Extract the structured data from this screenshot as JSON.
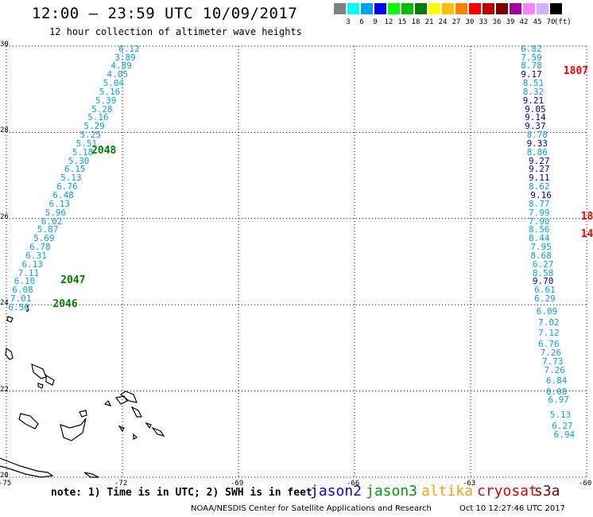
{
  "header": {
    "title": "12:00 – 23:59 UTC 10/09/2017",
    "subtitle": "12 hour collection of altimeter wave heights"
  },
  "legend": {
    "unit": "(ft)",
    "bins": [
      {
        "label": "3",
        "color": "#808080"
      },
      {
        "label": "6",
        "color": "#00ffff"
      },
      {
        "label": "9",
        "color": "#00a0ff"
      },
      {
        "label": "12",
        "color": "#0000ff"
      },
      {
        "label": "15",
        "color": "#00ff00"
      },
      {
        "label": "18",
        "color": "#00c000"
      },
      {
        "label": "21",
        "color": "#008000"
      },
      {
        "label": "24",
        "color": "#ffff00"
      },
      {
        "label": "27",
        "color": "#ffc000"
      },
      {
        "label": "30",
        "color": "#ff8000"
      },
      {
        "label": "33",
        "color": "#ff0000"
      },
      {
        "label": "36",
        "color": "#c00000"
      },
      {
        "label": "39",
        "color": "#800000"
      },
      {
        "label": "42",
        "color": "#a000a0"
      },
      {
        "label": "45",
        "color": "#ff80ff"
      },
      {
        "label": "70",
        "color": "#d0b0ff"
      },
      {
        "label": "",
        "color": "#000000"
      }
    ]
  },
  "axes": {
    "lon_ticks": [
      "-75",
      "-72",
      "-69",
      "-66",
      "-63",
      "-60"
    ],
    "lat_ticks": [
      "30",
      "28",
      "26",
      "24",
      "22",
      "20"
    ],
    "lon_range": [
      -75,
      -60
    ],
    "lat_range": [
      20,
      30
    ]
  },
  "tracks": [
    {
      "id": "west-track",
      "points": [
        {
          "v": "6.12",
          "lon": -72.1,
          "lat": 29.95,
          "c": "#00a0ff"
        },
        {
          "v": "3.89",
          "lon": -72.2,
          "lat": 29.75,
          "c": "#00a0ff"
        },
        {
          "v": "4.89",
          "lon": -72.3,
          "lat": 29.55,
          "c": "#00a0ff"
        },
        {
          "v": "4.05",
          "lon": -72.4,
          "lat": 29.35,
          "c": "#00a0ff"
        },
        {
          "v": "5.04",
          "lon": -72.5,
          "lat": 29.15,
          "c": "#00a0ff"
        },
        {
          "v": "5.16",
          "lon": -72.6,
          "lat": 28.95,
          "c": "#00a0ff"
        },
        {
          "v": "5.39",
          "lon": -72.7,
          "lat": 28.75,
          "c": "#00a0ff"
        },
        {
          "v": "5.28",
          "lon": -72.8,
          "lat": 28.55,
          "c": "#00a0ff"
        },
        {
          "v": "5.16",
          "lon": -72.9,
          "lat": 28.35,
          "c": "#00a0ff"
        },
        {
          "v": "5.29",
          "lon": -73.0,
          "lat": 28.15,
          "c": "#00a0ff"
        },
        {
          "v": "5.25",
          "lon": -73.1,
          "lat": 27.95,
          "c": "#00a0ff"
        },
        {
          "v": "5.51",
          "lon": -73.2,
          "lat": 27.75,
          "c": "#00a0ff"
        },
        {
          "v": "5.18",
          "lon": -73.3,
          "lat": 27.55,
          "c": "#00a0ff"
        },
        {
          "v": "5.30",
          "lon": -73.4,
          "lat": 27.35,
          "c": "#00a0ff"
        },
        {
          "v": "6.15",
          "lon": -73.5,
          "lat": 27.15,
          "c": "#00a0ff"
        },
        {
          "v": "5.13",
          "lon": -73.6,
          "lat": 26.95,
          "c": "#00a0ff"
        },
        {
          "v": "6.76",
          "lon": -73.7,
          "lat": 26.75,
          "c": "#00a0ff"
        },
        {
          "v": "6.48",
          "lon": -73.8,
          "lat": 26.55,
          "c": "#00a0ff"
        },
        {
          "v": "6.13",
          "lon": -73.9,
          "lat": 26.35,
          "c": "#00a0ff"
        },
        {
          "v": "5.96",
          "lon": -74.0,
          "lat": 26.15,
          "c": "#00a0ff"
        },
        {
          "v": "6.02",
          "lon": -74.1,
          "lat": 25.95,
          "c": "#00a0ff"
        },
        {
          "v": "5.87",
          "lon": -74.2,
          "lat": 25.75,
          "c": "#00a0ff"
        },
        {
          "v": "5.69",
          "lon": -74.3,
          "lat": 25.55,
          "c": "#00a0ff"
        },
        {
          "v": "6.78",
          "lon": -74.4,
          "lat": 25.35,
          "c": "#00a0ff"
        },
        {
          "v": "6.31",
          "lon": -74.5,
          "lat": 25.15,
          "c": "#00a0ff"
        },
        {
          "v": "6.13",
          "lon": -74.6,
          "lat": 24.95,
          "c": "#00a0ff"
        },
        {
          "v": "7.11",
          "lon": -74.7,
          "lat": 24.75,
          "c": "#00a0ff"
        },
        {
          "v": "6.10",
          "lon": -74.8,
          "lat": 24.55,
          "c": "#00a0ff"
        },
        {
          "v": "6.08",
          "lon": -74.85,
          "lat": 24.35,
          "c": "#00a0ff"
        },
        {
          "v": "7.01",
          "lon": -74.9,
          "lat": 24.15,
          "c": "#00a0ff"
        },
        {
          "v": "6.50",
          "lon": -74.95,
          "lat": 23.95,
          "c": "#00a0ff"
        }
      ]
    },
    {
      "id": "east-track",
      "points": [
        {
          "v": "6.82",
          "lon": -61.7,
          "lat": 29.95,
          "c": "#00a0ff"
        },
        {
          "v": "7.59",
          "lon": -61.7,
          "lat": 29.75,
          "c": "#00a0ff"
        },
        {
          "v": "8.78",
          "lon": -61.7,
          "lat": 29.55,
          "c": "#00a0ff"
        },
        {
          "v": "9.17",
          "lon": -61.7,
          "lat": 29.35,
          "c": "#0000c0"
        },
        {
          "v": "8.51",
          "lon": -61.65,
          "lat": 29.15,
          "c": "#00a0ff"
        },
        {
          "v": "8.32",
          "lon": -61.65,
          "lat": 28.95,
          "c": "#00a0ff"
        },
        {
          "v": "9.21",
          "lon": -61.65,
          "lat": 28.75,
          "c": "#0000c0"
        },
        {
          "v": "9.05",
          "lon": -61.6,
          "lat": 28.55,
          "c": "#0000c0"
        },
        {
          "v": "9.14",
          "lon": -61.6,
          "lat": 28.35,
          "c": "#0000c0"
        },
        {
          "v": "9.37",
          "lon": -61.6,
          "lat": 28.15,
          "c": "#0000c0"
        },
        {
          "v": "8.78",
          "lon": -61.55,
          "lat": 27.95,
          "c": "#00a0ff"
        },
        {
          "v": "9.33",
          "lon": -61.55,
          "lat": 27.75,
          "c": "#0000c0"
        },
        {
          "v": "8.86",
          "lon": -61.55,
          "lat": 27.55,
          "c": "#00a0ff"
        },
        {
          "v": "9.27",
          "lon": -61.5,
          "lat": 27.35,
          "c": "#0000c0"
        },
        {
          "v": "9.27",
          "lon": -61.5,
          "lat": 27.15,
          "c": "#0000c0"
        },
        {
          "v": "9.11",
          "lon": -61.5,
          "lat": 26.95,
          "c": "#0000c0"
        },
        {
          "v": "8.62",
          "lon": -61.5,
          "lat": 26.75,
          "c": "#00a0ff"
        },
        {
          "v": "9.16",
          "lon": -61.45,
          "lat": 26.55,
          "c": "#0000c0"
        },
        {
          "v": "8.77",
          "lon": -61.5,
          "lat": 26.35,
          "c": "#00a0ff"
        },
        {
          "v": "7.99",
          "lon": -61.5,
          "lat": 26.15,
          "c": "#00a0ff"
        },
        {
          "v": "7.90",
          "lon": -61.5,
          "lat": 25.95,
          "c": "#00a0ff"
        },
        {
          "v": "8.56",
          "lon": -61.5,
          "lat": 25.75,
          "c": "#00a0ff"
        },
        {
          "v": "8.44",
          "lon": -61.5,
          "lat": 25.55,
          "c": "#00a0ff"
        },
        {
          "v": "7.95",
          "lon": -61.45,
          "lat": 25.35,
          "c": "#00a0ff"
        },
        {
          "v": "8.68",
          "lon": -61.45,
          "lat": 25.15,
          "c": "#00a0ff"
        },
        {
          "v": "6.27",
          "lon": -61.4,
          "lat": 24.95,
          "c": "#00a0ff"
        },
        {
          "v": "8.58",
          "lon": -61.4,
          "lat": 24.75,
          "c": "#00a0ff"
        },
        {
          "v": "9.70",
          "lon": -61.4,
          "lat": 24.55,
          "c": "#0000c0"
        },
        {
          "v": "6.61",
          "lon": -61.35,
          "lat": 24.35,
          "c": "#00a0ff"
        },
        {
          "v": "6.29",
          "lon": -61.35,
          "lat": 24.15,
          "c": "#00a0ff"
        },
        {
          "v": "6.09",
          "lon": -61.3,
          "lat": 23.85,
          "c": "#00a0ff"
        },
        {
          "v": "7.02",
          "lon": -61.25,
          "lat": 23.6,
          "c": "#00a0ff"
        },
        {
          "v": "7.12",
          "lon": -61.25,
          "lat": 23.35,
          "c": "#00a0ff"
        },
        {
          "v": "6.76",
          "lon": -61.25,
          "lat": 23.1,
          "c": "#00a0ff"
        },
        {
          "v": "7.26",
          "lon": -61.2,
          "lat": 22.9,
          "c": "#00a0ff"
        },
        {
          "v": "7.73",
          "lon": -61.15,
          "lat": 22.7,
          "c": "#00a0ff"
        },
        {
          "v": "7.26",
          "lon": -61.1,
          "lat": 22.5,
          "c": "#00a0ff"
        },
        {
          "v": "6.84",
          "lon": -61.05,
          "lat": 22.25,
          "c": "#00a0ff"
        },
        {
          "v": "8.08",
          "lon": -61.05,
          "lat": 22.0,
          "c": "#00a0ff"
        },
        {
          "v": "6.97",
          "lon": -61.0,
          "lat": 21.8,
          "c": "#00a0ff"
        },
        {
          "v": "5.13",
          "lon": -60.95,
          "lat": 21.45,
          "c": "#00a0ff"
        },
        {
          "v": "6.27",
          "lon": -60.9,
          "lat": 21.2,
          "c": "#00a0ff"
        },
        {
          "v": "6.94",
          "lon": -60.85,
          "lat": 21.0,
          "c": "#00a0ff"
        }
      ]
    }
  ],
  "pass_labels": [
    {
      "text": "2048",
      "lon": -72.8,
      "lat": 27.58,
      "c": "#008000"
    },
    {
      "text": "2047",
      "lon": -73.6,
      "lat": 24.58,
      "c": "#008000"
    },
    {
      "text": "2046",
      "lon": -73.8,
      "lat": 24.02,
      "c": "#008000"
    },
    {
      "text": "1807",
      "lon": -60.6,
      "lat": 29.42,
      "c": "#ff0000"
    },
    {
      "text": "18",
      "lon": -60.15,
      "lat": 26.05,
      "c": "#ff0000"
    },
    {
      "text": "14",
      "lon": -60.15,
      "lat": 25.65,
      "c": "#ff0000"
    }
  ],
  "footer": {
    "note": "note:  1) Time is in UTC;  2) SWH is in feet",
    "satellites": [
      {
        "name": "jason2",
        "color": "#0000ff"
      },
      {
        "name": "jason3",
        "color": "#00a000"
      },
      {
        "name": "altika",
        "color": "#ffa000"
      },
      {
        "name": "cryosat",
        "color": "#e00000"
      },
      {
        "name": "s3a",
        "color": "#800000"
      }
    ],
    "credit": "NOAA/NESDIS Center for Satellite Applications and Research",
    "timestamp": "Oct 10 12:27:46 UTC 2017"
  }
}
